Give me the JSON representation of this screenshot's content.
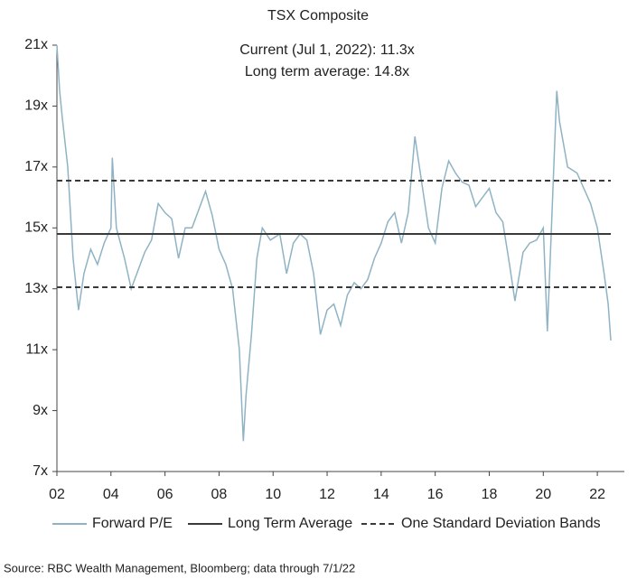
{
  "chart_data": {
    "type": "line",
    "title": "TSX Composite",
    "annotations": [
      "Current (Jul 1, 2022): 11.3x",
      "Long term average: 14.8x"
    ],
    "source": "Source: RBC Wealth Management, Bloomberg; data through 7/1/22",
    "xlim": [
      2002,
      2023
    ],
    "xticks": [
      {
        "value": 2002,
        "label": "02"
      },
      {
        "value": 2004,
        "label": "04"
      },
      {
        "value": 2006,
        "label": "06"
      },
      {
        "value": 2008,
        "label": "08"
      },
      {
        "value": 2010,
        "label": "10"
      },
      {
        "value": 2012,
        "label": "12"
      },
      {
        "value": 2014,
        "label": "14"
      },
      {
        "value": 2016,
        "label": "16"
      },
      {
        "value": 2018,
        "label": "18"
      },
      {
        "value": 2020,
        "label": "20"
      },
      {
        "value": 2022,
        "label": "22"
      }
    ],
    "ylim": [
      7,
      21
    ],
    "yticks": [
      {
        "value": 7,
        "label": "7x"
      },
      {
        "value": 9,
        "label": "9x"
      },
      {
        "value": 11,
        "label": "11x"
      },
      {
        "value": 13,
        "label": "13x"
      },
      {
        "value": 15,
        "label": "15x"
      },
      {
        "value": 17,
        "label": "17x"
      },
      {
        "value": 19,
        "label": "19x"
      },
      {
        "value": 21,
        "label": "21x"
      }
    ],
    "legend": "bottom",
    "series": [
      {
        "name": "Forward P/E",
        "color": "#8fb3c4",
        "style": "solid",
        "x": [
          2002.0,
          2002.1,
          2002.2,
          2002.4,
          2002.6,
          2002.8,
          2003.0,
          2003.25,
          2003.5,
          2003.75,
          2004.0,
          2004.05,
          2004.2,
          2004.5,
          2004.75,
          2005.0,
          2005.25,
          2005.5,
          2005.75,
          2006.0,
          2006.25,
          2006.5,
          2006.75,
          2007.0,
          2007.25,
          2007.5,
          2007.75,
          2008.0,
          2008.25,
          2008.5,
          2008.75,
          2008.9,
          2009.0,
          2009.2,
          2009.4,
          2009.6,
          2009.9,
          2010.25,
          2010.5,
          2010.75,
          2011.0,
          2011.25,
          2011.5,
          2011.75,
          2012.0,
          2012.25,
          2012.5,
          2012.75,
          2013.0,
          2013.25,
          2013.5,
          2013.75,
          2014.0,
          2014.25,
          2014.5,
          2014.75,
          2015.0,
          2015.25,
          2015.5,
          2015.75,
          2016.0,
          2016.25,
          2016.5,
          2016.75,
          2017.0,
          2017.25,
          2017.5,
          2017.75,
          2018.0,
          2018.25,
          2018.5,
          2018.75,
          2018.95,
          2019.25,
          2019.5,
          2019.75,
          2020.0,
          2020.15,
          2020.3,
          2020.5,
          2020.6,
          2020.9,
          2021.25,
          2021.5,
          2021.75,
          2022.0,
          2022.25,
          2022.4,
          2022.5
        ],
        "values": [
          21,
          19.5,
          18.6,
          17.0,
          14.0,
          12.3,
          13.5,
          14.3,
          13.8,
          14.5,
          15.0,
          17.3,
          15.0,
          14.0,
          13.0,
          13.6,
          14.2,
          14.6,
          15.8,
          15.5,
          15.3,
          14.0,
          15.0,
          15.0,
          15.6,
          16.2,
          15.4,
          14.3,
          13.8,
          13.0,
          11.0,
          8.0,
          9.5,
          11.5,
          14.0,
          15.0,
          14.6,
          14.8,
          13.5,
          14.5,
          14.8,
          14.6,
          13.5,
          11.5,
          12.3,
          12.5,
          11.8,
          12.8,
          13.2,
          13.0,
          13.3,
          14.0,
          14.5,
          15.2,
          15.5,
          14.5,
          15.5,
          18.0,
          16.5,
          15.0,
          14.5,
          16.3,
          17.2,
          16.8,
          16.5,
          16.4,
          15.7,
          16.0,
          16.3,
          15.5,
          15.2,
          13.8,
          12.6,
          14.2,
          14.5,
          14.6,
          15.0,
          11.6,
          15.0,
          19.5,
          18.5,
          17.0,
          16.8,
          16.3,
          15.8,
          15.0,
          13.5,
          12.5,
          11.3
        ]
      },
      {
        "name": "Long Term Average",
        "color": "#3a3a3a",
        "style": "solid",
        "x": [
          2002,
          2022.5
        ],
        "values": [
          14.8,
          14.8
        ]
      },
      {
        "name": "One Standard Deviation Bands",
        "color": "#3a3a3a",
        "style": "dashed",
        "x": [
          2002,
          2022.5,
          2022.5,
          2002,
          2022.5
        ],
        "values": [
          16.55,
          16.55,
          null,
          13.05,
          13.05
        ]
      }
    ]
  }
}
